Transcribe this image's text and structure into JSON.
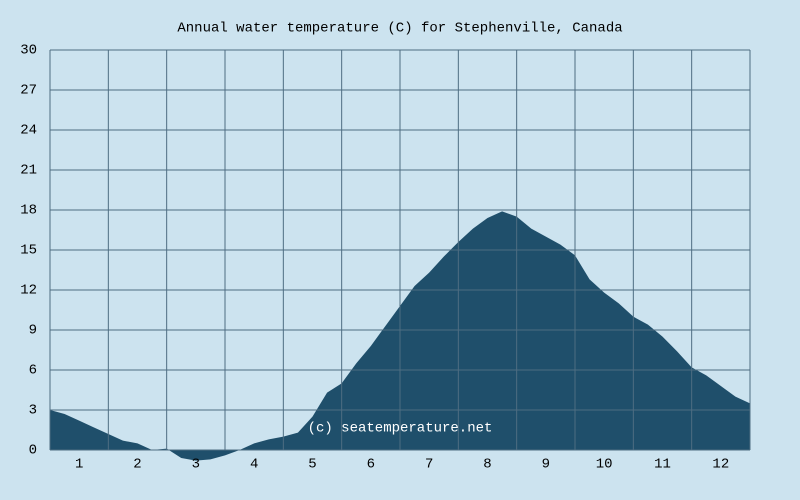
{
  "chart_data": {
    "type": "area",
    "title": "Annual water temperature (C) for Stephenville, Canada",
    "annotation": "(c) seatemperature.net",
    "x": [
      0.5,
      0.75,
      1,
      1.25,
      1.5,
      1.75,
      2,
      2.25,
      2.5,
      2.75,
      3,
      3.25,
      3.5,
      3.75,
      4,
      4.25,
      4.5,
      4.75,
      5,
      5.25,
      5.5,
      5.75,
      6,
      6.25,
      6.5,
      6.75,
      7,
      7.25,
      7.5,
      7.75,
      8,
      8.25,
      8.5,
      8.75,
      9,
      9.25,
      9.5,
      9.75,
      10,
      10.25,
      10.5,
      10.75,
      11,
      11.25,
      11.5,
      11.75,
      12,
      12.25,
      12.5
    ],
    "series": [
      {
        "name": "Water temperature",
        "color": "#1f4f6b",
        "values": [
          3.0,
          2.7,
          2.2,
          1.7,
          1.2,
          0.7,
          0.5,
          0.0,
          0.1,
          -0.6,
          -0.8,
          -0.7,
          -0.4,
          0.0,
          0.5,
          0.8,
          1.0,
          1.3,
          2.5,
          4.3,
          5.0,
          6.5,
          7.8,
          9.3,
          10.8,
          12.3,
          13.3,
          14.5,
          15.6,
          16.6,
          17.4,
          17.9,
          17.5,
          16.6,
          16.0,
          15.4,
          14.6,
          12.8,
          11.8,
          11.0,
          10.0,
          9.4,
          8.5,
          7.4,
          6.2,
          5.6,
          4.8,
          4.0,
          3.5
        ]
      }
    ],
    "xlim": [
      0.5,
      12.5
    ],
    "xticks": [
      1,
      2,
      3,
      4,
      5,
      6,
      7,
      8,
      9,
      10,
      11,
      12
    ],
    "ylim": [
      0,
      30
    ],
    "yticks": [
      0,
      3,
      6,
      9,
      12,
      15,
      18,
      21,
      24,
      27,
      30
    ],
    "grid": true
  }
}
